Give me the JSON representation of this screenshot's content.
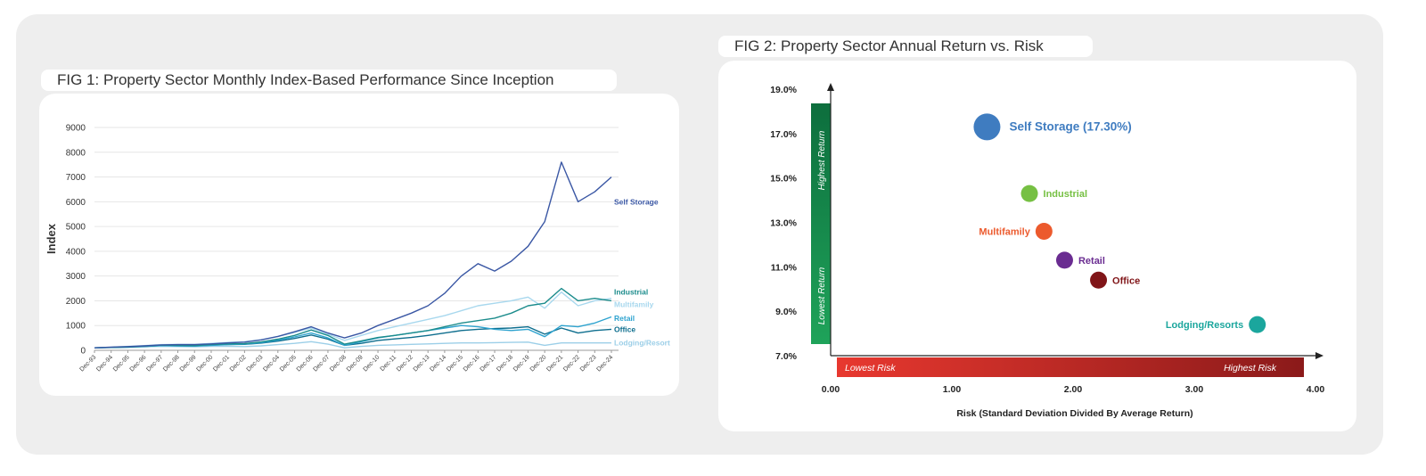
{
  "fig1": {
    "title": "FIG 1: Property Sector Monthly Index-Based Performance Since Inception"
  },
  "fig2": {
    "title": "FIG 2: Property Sector Annual Return vs. Risk"
  },
  "chart_data": [
    {
      "type": "line",
      "title": "FIG 1: Property Sector Monthly Index-Based Performance Since Inception",
      "xlabel": "",
      "ylabel": "Index",
      "ylim": [
        0,
        9000
      ],
      "yticks": [
        "0",
        "1000",
        "2000",
        "3000",
        "4000",
        "5000",
        "6000",
        "7000",
        "8000",
        "9000"
      ],
      "grid": true,
      "categories": [
        "Dec-93",
        "Dec-94",
        "Dec-95",
        "Dec-96",
        "Dec-97",
        "Dec-98",
        "Dec-99",
        "Dec-00",
        "Dec-01",
        "Dec-02",
        "Dec-03",
        "Dec-04",
        "Dec-05",
        "Dec-06",
        "Dec-07",
        "Dec-08",
        "Dec-09",
        "Dec-10",
        "Dec-11",
        "Dec-12",
        "Dec-13",
        "Dec-14",
        "Dec-15",
        "Dec-16",
        "Dec-17",
        "Dec-18",
        "Dec-19",
        "Dec-20",
        "Dec-21",
        "Dec-22",
        "Dec-23",
        "Dec-24"
      ],
      "series": [
        {
          "name": "Self Storage",
          "color": "#3a57a4",
          "values": [
            100,
            130,
            150,
            180,
            220,
            230,
            230,
            260,
            300,
            330,
            420,
            560,
            750,
            950,
            700,
            500,
            700,
            1000,
            1250,
            1500,
            1800,
            2300,
            3000,
            3500,
            3200,
            3600,
            4200,
            5200,
            7600,
            6000,
            6400,
            7000
          ]
        },
        {
          "name": "Industrial",
          "color": "#1c8c8c",
          "values": [
            100,
            120,
            140,
            170,
            210,
            200,
            190,
            230,
            260,
            270,
            340,
            450,
            600,
            820,
            600,
            250,
            380,
            520,
            600,
            700,
            800,
            950,
            1100,
            1200,
            1300,
            1500,
            1800,
            1900,
            2500,
            2000,
            2100,
            2000
          ]
        },
        {
          "name": "Multifamily",
          "color": "#a8d8ee",
          "values": [
            100,
            130,
            160,
            190,
            230,
            240,
            240,
            280,
            320,
            350,
            430,
            560,
            720,
            900,
            650,
            400,
            600,
            800,
            950,
            1100,
            1250,
            1400,
            1600,
            1800,
            1900,
            2000,
            2150,
            1700,
            2350,
            1800,
            2000,
            2100
          ]
        },
        {
          "name": "Retail",
          "color": "#2ea3cf",
          "values": [
            100,
            120,
            140,
            160,
            190,
            180,
            170,
            200,
            230,
            250,
            310,
            410,
            540,
            700,
            500,
            200,
            350,
            500,
            600,
            700,
            800,
            900,
            1000,
            950,
            850,
            800,
            850,
            550,
            1000,
            950,
            1100,
            1350
          ]
        },
        {
          "name": "Office",
          "color": "#0e6e8e",
          "values": [
            100,
            115,
            130,
            155,
            190,
            185,
            175,
            210,
            235,
            240,
            290,
            370,
            480,
            620,
            450,
            200,
            280,
            400,
            460,
            520,
            600,
            700,
            800,
            850,
            880,
            900,
            950,
            650,
            900,
            700,
            800,
            850
          ]
        },
        {
          "name": "Lodging/Resort",
          "color": "#9ccfe8",
          "values": [
            100,
            110,
            120,
            140,
            160,
            150,
            140,
            160,
            160,
            150,
            180,
            230,
            280,
            350,
            250,
            100,
            160,
            200,
            220,
            240,
            260,
            280,
            300,
            300,
            310,
            320,
            330,
            200,
            300,
            300,
            300,
            300
          ]
        }
      ]
    },
    {
      "type": "scatter",
      "title": "FIG 2: Property Sector Annual Return vs. Risk",
      "xlabel": "Risk (Standard Deviation Divided By Average Return)",
      "ylabel": "",
      "xlim": [
        0,
        4
      ],
      "ylim": [
        7,
        19
      ],
      "xticks": [
        "0.00",
        "1.00",
        "2.00",
        "3.00",
        "4.00"
      ],
      "yticks": [
        "7.0%",
        "9.0%",
        "11.0%",
        "13.0%",
        "15.0%",
        "17.0%",
        "19.0%"
      ],
      "y_band_labels": {
        "top": "Highest Return",
        "bottom": "Lowest Return"
      },
      "x_band_labels": {
        "left": "Lowest Risk",
        "right": "Highest Risk"
      },
      "points": [
        {
          "label": "Self Storage (17.30%)",
          "x": 1.29,
          "y": 17.3,
          "color": "#3f7cc0",
          "size": "large"
        },
        {
          "label": "Industrial",
          "x": 1.64,
          "y": 14.3,
          "color": "#76c043",
          "size": "small"
        },
        {
          "label": "Multifamily",
          "x": 1.76,
          "y": 12.6,
          "color": "#ec5a2d",
          "size": "small"
        },
        {
          "label": "Retail",
          "x": 1.93,
          "y": 11.3,
          "color": "#6a2c91",
          "size": "small"
        },
        {
          "label": "Office",
          "x": 2.21,
          "y": 10.4,
          "color": "#801518",
          "size": "small"
        },
        {
          "label": "Lodging/Resorts",
          "x": 3.52,
          "y": 8.4,
          "color": "#1ba69d",
          "size": "small"
        }
      ]
    }
  ]
}
